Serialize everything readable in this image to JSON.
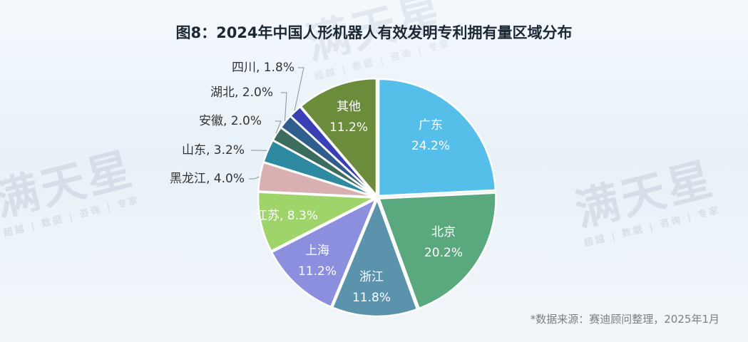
{
  "chart_data": {
    "type": "pie",
    "title": "图8：2024年中国人形机器人有效发明专利拥有量区域分布",
    "source": "*数据来源：赛迪顾问整理，2025年1月",
    "unit": "%",
    "slices": [
      {
        "label": "广东",
        "value": 24.2,
        "value_text": "24.2%",
        "color": "#56bfe9",
        "text_color": "#ffffff",
        "label_placement": "inside"
      },
      {
        "label": "北京",
        "value": 20.2,
        "value_text": "20.2%",
        "color": "#5aa97e",
        "text_color": "#ffffff",
        "label_placement": "inside"
      },
      {
        "label": "浙江",
        "value": 11.8,
        "value_text": "11.8%",
        "color": "#5b93ac",
        "text_color": "#ffffff",
        "label_placement": "inside"
      },
      {
        "label": "上海",
        "value": 11.2,
        "value_text": "11.2%",
        "color": "#8b8fde",
        "text_color": "#ffffff",
        "label_placement": "inside"
      },
      {
        "label": "江苏",
        "value": 8.3,
        "value_text": "8.3%",
        "color": "#9fd46b",
        "text_color": "#ffffff",
        "label_placement": "inside-one-line"
      },
      {
        "label": "黑龙江",
        "value": 4.0,
        "value_text": "4.0%",
        "color": "#d9b0b1",
        "text_color": "#333333",
        "label_placement": "outside"
      },
      {
        "label": "山东",
        "value": 3.2,
        "value_text": "3.2%",
        "color": "#2e8aa0",
        "text_color": "#333333",
        "label_placement": "outside"
      },
      {
        "label": "安徽",
        "value": 2.0,
        "value_text": "2.0%",
        "color": "#3c6c5e",
        "text_color": "#333333",
        "label_placement": "outside"
      },
      {
        "label": "湖北",
        "value": 2.0,
        "value_text": "2.0%",
        "color": "#2f5d8c",
        "text_color": "#333333",
        "label_placement": "outside"
      },
      {
        "label": "四川",
        "value": 1.8,
        "value_text": "1.8%",
        "color": "#3a3fb5",
        "text_color": "#333333",
        "label_placement": "outside"
      },
      {
        "label": "其他",
        "value": 11.2,
        "value_text": "11.2%",
        "color": "#6b8c3a",
        "text_color": "#ffffff",
        "label_placement": "inside"
      }
    ],
    "start_angle": "12 o'clock",
    "direction": "clockwise",
    "legend": "none"
  },
  "watermark": {
    "text": "满天星",
    "subtext": "超越 | 数据 | 咨询 | 专家"
  }
}
